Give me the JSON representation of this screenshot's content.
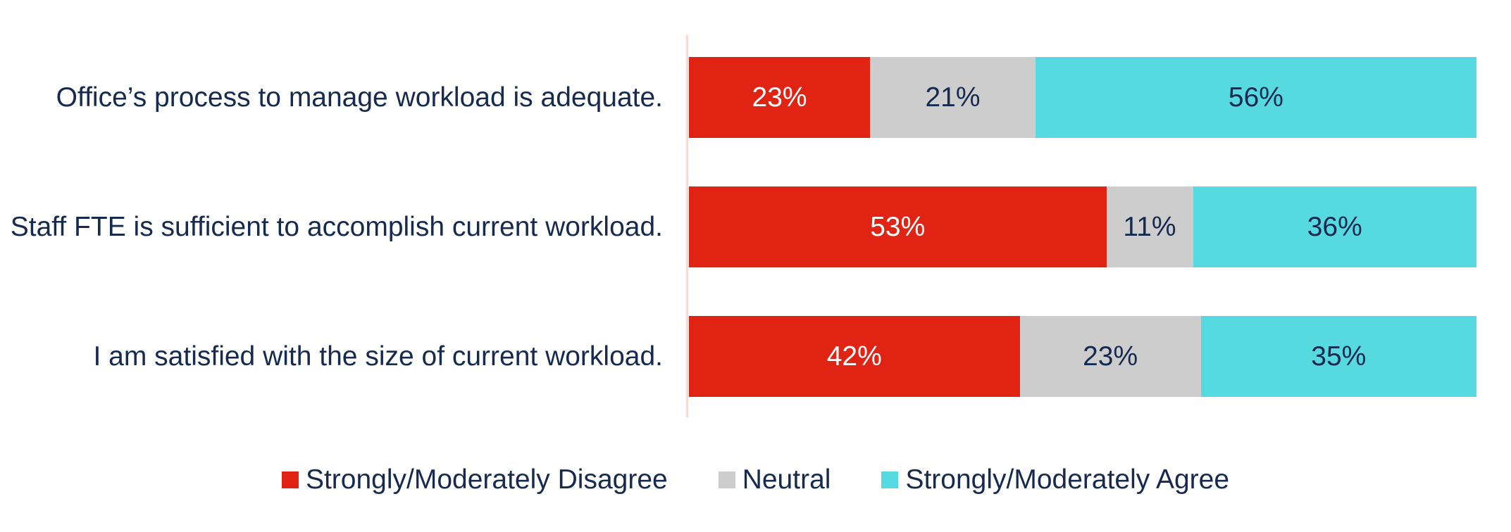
{
  "chart_data": {
    "type": "bar",
    "variant": "horizontal-stacked",
    "title": "",
    "categories": [
      "Office’s process to manage workload is adequate.",
      "Staff FTE is sufficient to accomplish current workload.",
      "I am satisfied with the size of current workload."
    ],
    "series": [
      {
        "name": "Strongly/Moderately Disagree",
        "color": "#e02313",
        "label_color": "#ffffff",
        "values": [
          23,
          53,
          42
        ]
      },
      {
        "name": "Neutral",
        "color": "#cdcdcd",
        "label_color": "#152a4e",
        "values": [
          21,
          11,
          23
        ]
      },
      {
        "name": "Strongly/Moderately Agree",
        "color": "#56d9e0",
        "label_color": "#152a4e",
        "values": [
          56,
          36,
          35
        ]
      }
    ],
    "value_suffix": "%",
    "xlim": [
      0,
      100
    ],
    "grid": false,
    "legend_position": "bottom",
    "axis_line_color": "#f7d9d6",
    "text_color": "#152a4e",
    "background": "#ffffff"
  }
}
